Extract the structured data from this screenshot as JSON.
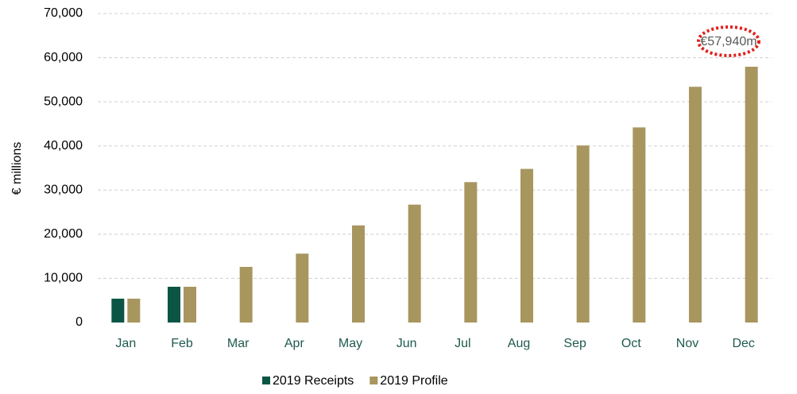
{
  "chart_data": {
    "type": "bar",
    "y_label": "€ millions",
    "categories": [
      "Jan",
      "Feb",
      "Mar",
      "Apr",
      "May",
      "Jun",
      "Jul",
      "Aug",
      "Sep",
      "Oct",
      "Nov",
      "Dec"
    ],
    "series": [
      {
        "name": "2019 Receipts",
        "color": "#0b5545",
        "values": [
          5400,
          8100,
          null,
          null,
          null,
          null,
          null,
          null,
          null,
          null,
          null,
          null
        ]
      },
      {
        "name": "2019 Profile",
        "color": "#a8965f",
        "values": [
          5400,
          8100,
          12600,
          15600,
          22000,
          26700,
          31800,
          34800,
          40100,
          44200,
          53400,
          57940
        ]
      }
    ],
    "annotation": "€57,940m",
    "ylim": [
      0,
      70000
    ],
    "yticks": [
      0,
      {
        "value": 10000,
        "label": "10,000"
      },
      {
        "value": 20000,
        "label": "20,000"
      },
      {
        "value": 30000,
        "label": "30,000"
      },
      {
        "value": 40000,
        "label": "40,000"
      },
      {
        "value": 50000,
        "label": "50,000"
      },
      {
        "value": 60000,
        "label": "60,000"
      },
      {
        "value": 70000,
        "label": "70,000"
      }
    ],
    "grid": true,
    "legend": "bottom"
  }
}
